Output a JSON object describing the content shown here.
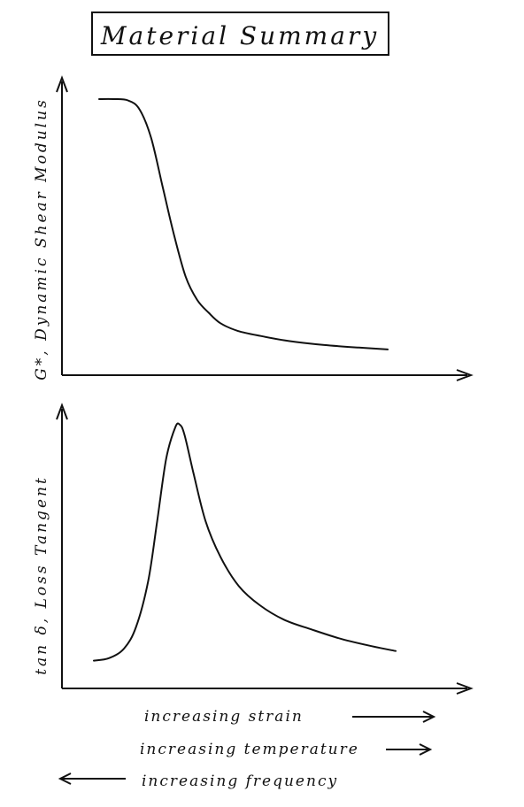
{
  "title": "Material Summary",
  "ink_color": "#111111",
  "background_color": "#ffffff",
  "chart_data": [
    {
      "type": "line",
      "ylabel": "G*, Dynamic Shear Modulus",
      "xlabel": "",
      "x_ticks": "none",
      "y_ticks": "none",
      "grid": false,
      "xlim": [
        0,
        1
      ],
      "ylim": [
        0,
        1
      ],
      "series": [
        {
          "x": [
            0.0,
            0.05,
            0.1,
            0.14,
            0.18,
            0.22,
            0.26,
            0.3,
            0.34,
            0.38,
            0.42,
            0.48,
            0.56,
            0.66,
            0.78,
            0.9,
            1.0
          ],
          "y": [
            1.0,
            1.0,
            0.995,
            0.96,
            0.85,
            0.66,
            0.47,
            0.31,
            0.22,
            0.17,
            0.13,
            0.1,
            0.08,
            0.06,
            0.045,
            0.035,
            0.028
          ]
        }
      ]
    },
    {
      "type": "line",
      "ylabel": "tan δ, Loss Tangent",
      "xlabel": "",
      "x_ticks": "none",
      "y_ticks": "none",
      "grid": false,
      "xlim": [
        0,
        1
      ],
      "ylim": [
        0,
        1
      ],
      "series": [
        {
          "x": [
            0.0,
            0.05,
            0.1,
            0.14,
            0.18,
            0.21,
            0.24,
            0.27,
            0.285,
            0.3,
            0.33,
            0.37,
            0.42,
            0.48,
            0.55,
            0.63,
            0.72,
            0.82,
            0.92,
            1.0
          ],
          "y": [
            0.02,
            0.03,
            0.07,
            0.16,
            0.35,
            0.6,
            0.86,
            0.99,
            1.0,
            0.96,
            0.8,
            0.6,
            0.45,
            0.33,
            0.25,
            0.19,
            0.15,
            0.11,
            0.08,
            0.06
          ]
        }
      ]
    }
  ],
  "legend": [
    {
      "text": "increasing strain",
      "direction": "right"
    },
    {
      "text": "increasing temperature",
      "direction": "right"
    },
    {
      "text": "increasing frequency",
      "direction": "left"
    }
  ]
}
